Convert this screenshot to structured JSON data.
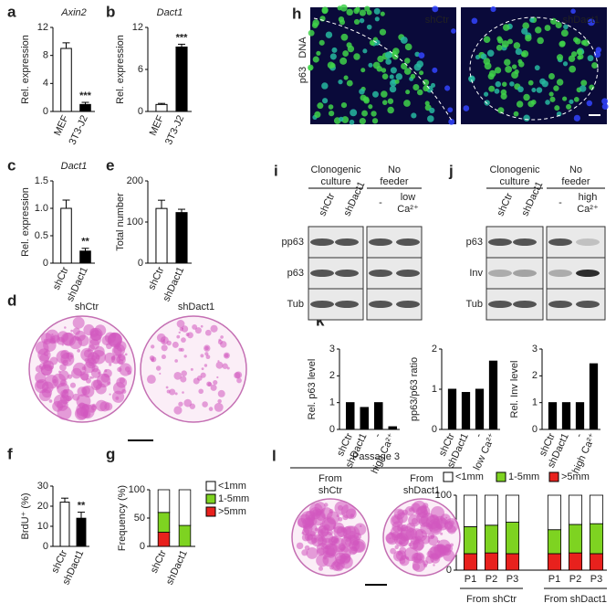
{
  "chart_data": [
    {
      "type": "bar",
      "letter": "a",
      "title": "Axin2",
      "ylabel": "Rel. expression",
      "categories": [
        "MEF",
        "3T3-J2"
      ],
      "values": [
        9,
        1
      ],
      "errors": [
        0.8,
        0.3
      ],
      "colors": [
        "#ffffff",
        "#000000"
      ],
      "ylim": [
        0,
        12
      ],
      "yticks": [
        0,
        4,
        8,
        12
      ],
      "significance": "***"
    },
    {
      "type": "bar",
      "letter": "b",
      "title": "Dact1",
      "ylabel": "Rel. expression",
      "categories": [
        "MEF",
        "3T3-J2"
      ],
      "values": [
        1,
        9.2
      ],
      "errors": [
        0.15,
        0.4
      ],
      "colors": [
        "#ffffff",
        "#000000"
      ],
      "ylim": [
        0,
        12
      ],
      "yticks": [
        0,
        6,
        12
      ],
      "significance": "***"
    },
    {
      "type": "bar",
      "letter": "c",
      "title": "Dact1",
      "ylabel": "Rel. expression",
      "categories": [
        "shCtr",
        "shDact1"
      ],
      "values": [
        1.0,
        0.22
      ],
      "errors": [
        0.15,
        0.05
      ],
      "colors": [
        "#ffffff",
        "#000000"
      ],
      "ylim": [
        0,
        1.5
      ],
      "yticks": [
        0,
        0.5,
        {
          "value": 1,
          "label": "1.0"
        },
        1.5
      ],
      "significance": "**"
    },
    {
      "type": "bar",
      "letter": "e",
      "ylabel": "Total number",
      "categories": [
        "shCtr",
        "shDact1"
      ],
      "values": [
        133,
        123
      ],
      "errors": [
        20,
        8
      ],
      "colors": [
        "#ffffff",
        "#000000"
      ],
      "ylim": [
        0,
        200
      ],
      "yticks": [
        0,
        100,
        200
      ]
    },
    {
      "type": "bar",
      "letter": "f",
      "ylabel": "BrdU⁺ (%)",
      "categories": [
        "shCtr",
        "shDact1"
      ],
      "values": [
        22,
        14
      ],
      "errors": [
        2,
        3
      ],
      "colors": [
        "#ffffff",
        "#000000"
      ],
      "ylim": [
        0,
        30
      ],
      "yticks": [
        0,
        10,
        20,
        30
      ],
      "significance": "**"
    },
    {
      "type": "stacked_bar",
      "letter": "g",
      "ylabel": "Frequency (%)",
      "categories": [
        "shCtr",
        "shDact1"
      ],
      "series": [
        {
          "name": ">5mm",
          "color": "#e8211d",
          "values": [
            25,
            0
          ]
        },
        {
          "name": "1-5mm",
          "color": "#7ed321",
          "values": [
            35,
            37
          ]
        },
        {
          "name": "<1mm",
          "color": "#ffffff",
          "values": [
            40,
            63
          ]
        }
      ],
      "ylim": [
        0,
        100
      ],
      "yticks": [
        0,
        50,
        100
      ],
      "legend": "right"
    },
    {
      "type": "bar",
      "letter": "k",
      "ylabel": "Rel. p63 level",
      "categories": [
        "shCtr",
        "shDact1",
        "-",
        "high Ca²⁺"
      ],
      "values": [
        1.0,
        0.82,
        1.0,
        0.1
      ],
      "color": "#000000",
      "ylim": [
        0,
        3
      ],
      "yticks": [
        0,
        1,
        2,
        3
      ]
    },
    {
      "type": "bar",
      "ylabel": "pp63/p63 ratio",
      "categories": [
        "shCtr",
        "shDact1",
        "-",
        "low Ca²⁺"
      ],
      "values": [
        1.0,
        0.92,
        1.0,
        1.7
      ],
      "color": "#000000",
      "ylim": [
        0,
        2
      ],
      "yticks": [
        0,
        1,
        2
      ]
    },
    {
      "type": "bar",
      "ylabel": "Rel. Inv level",
      "categories": [
        "shCtr",
        "shDact1",
        "-",
        "high Ca²⁺"
      ],
      "values": [
        1.0,
        1.0,
        1.0,
        2.45
      ],
      "color": "#000000",
      "ylim": [
        0,
        3
      ],
      "yticks": [
        0,
        1,
        2,
        3
      ]
    },
    {
      "type": "stacked_bar",
      "ylabel": "Frequency (%)",
      "groups": [
        {
          "label": "From shCtr",
          "categories": [
            "P1",
            "P2",
            "P3"
          ]
        },
        {
          "label": "From shDact1",
          "categories": [
            "P1",
            "P2",
            "P3"
          ]
        }
      ],
      "series": [
        {
          "name": ">5mm",
          "color": "#e8211d",
          "values": [
            22,
            23,
            22,
            22,
            23,
            22
          ]
        },
        {
          "name": "1-5mm",
          "color": "#7ed321",
          "values": [
            36,
            37,
            42,
            32,
            38,
            40
          ]
        },
        {
          "name": "<1mm",
          "color": "#ffffff",
          "values": [
            42,
            40,
            36,
            46,
            39,
            38
          ]
        }
      ],
      "ylim": [
        0,
        100
      ],
      "yticks": [
        0,
        50,
        100
      ],
      "legend": "top"
    }
  ],
  "figure": {
    "d": {
      "letter": "d",
      "labels": [
        "shCtr",
        "shDact1"
      ]
    },
    "h": {
      "letter": "h",
      "stain": [
        "p63",
        "DNA"
      ],
      "labels": [
        "shCtr",
        "shDact1"
      ]
    },
    "i": {
      "letter": "i",
      "headers": [
        [
          "Clonogenic",
          "culture"
        ],
        [
          "No",
          "feeder"
        ]
      ],
      "lanes": [
        "shCtr",
        "shDact1"
      ],
      "treatments": [
        [
          "-"
        ],
        [
          "low",
          "Ca²⁺"
        ]
      ],
      "rows": [
        "pp63",
        "p63",
        "Tub"
      ]
    },
    "j": {
      "letter": "j",
      "headers": [
        [
          "Clonogenic",
          "culture"
        ],
        [
          "No",
          "feeder"
        ]
      ],
      "lanes": [
        "shCtr",
        "shDact1"
      ],
      "treatments": [
        [
          "-"
        ],
        [
          "high",
          "Ca²⁺"
        ]
      ],
      "rows": [
        "p63",
        "Inv",
        "Tub"
      ]
    },
    "l": {
      "letter": "l",
      "title": "Passage 3",
      "labels": [
        [
          "From",
          "shCtr"
        ],
        [
          "From",
          "shDact1"
        ]
      ]
    }
  }
}
